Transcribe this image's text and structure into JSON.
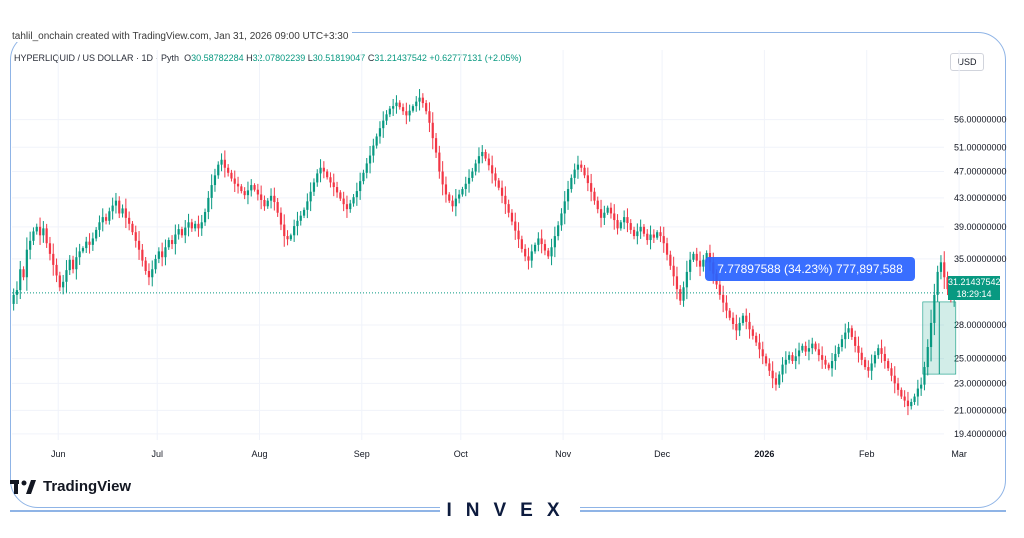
{
  "credit": "tahlil_onchain created with TradingView.com, Jan 31, 2026 09:00 UTC+3:30",
  "symbol_bar": {
    "symbol": "HYPERLIQUID / US DOLLAR · 1D · Pyth",
    "o_label": "O",
    "o_value": "30.58782284",
    "h_label": "H",
    "h_value": "32.07802239",
    "l_label": "L",
    "l_value": "30.51819047",
    "c_label": "C",
    "c_value": "31.21437542",
    "change": "+0.62777131 (+2.05%)"
  },
  "currency_button": "USD",
  "current_price": {
    "value": "31.21437542",
    "countdown": "18:29:14"
  },
  "measure_label": "7.77897588 (34.23%) 777,897,588",
  "brand": {
    "tradingview": "TradingView",
    "watermark": "INVEX"
  },
  "colors": {
    "up": "#089981",
    "down": "#f23645",
    "accent": "#2962ff",
    "frame": "#8fb4e6"
  },
  "chart_data": {
    "type": "candlestick",
    "series_name": "HYPERLIQUID / US DOLLAR",
    "scale": "log",
    "ylim": [
      19.0,
      64.0
    ],
    "y_ticks": [
      "56.00000000",
      "51.00000000",
      "47.00000000",
      "43.00000000",
      "39.00000000",
      "35.00000000",
      "28.00000000",
      "25.00000000",
      "23.00000000",
      "21.00000000",
      "19.40000000"
    ],
    "x_ticks": [
      "Jun",
      "Jul",
      "Aug",
      "Sep",
      "Oct",
      "Nov",
      "Dec",
      "2026",
      "Feb",
      "Mar"
    ],
    "x_tick_dates": [
      "2025-06-01",
      "2025-07-01",
      "2025-08-01",
      "2025-09-01",
      "2025-10-01",
      "2025-11-01",
      "2025-12-01",
      "2026-01-01",
      "2026-02-01",
      "2026-03-01"
    ],
    "start_date": "2025-05-18",
    "end_date": "2026-01-31",
    "closes": [
      31.0,
      31.5,
      33.8,
      32.9,
      36.1,
      37.2,
      38.4,
      39.0,
      37.9,
      38.8,
      36.9,
      35.6,
      34.3,
      33.1,
      31.8,
      32.4,
      33.7,
      34.9,
      33.8,
      35.2,
      35.9,
      36.3,
      37.1,
      36.7,
      37.5,
      38.6,
      39.6,
      40.3,
      39.8,
      41.1,
      41.9,
      42.6,
      40.8,
      41.5,
      40.2,
      39.4,
      38.3,
      37.2,
      36.1,
      34.8,
      33.6,
      32.9,
      33.8,
      35.0,
      35.9,
      35.2,
      36.4,
      37.3,
      36.8,
      38.0,
      38.7,
      37.9,
      38.9,
      39.6,
      38.8,
      39.4,
      38.8,
      39.6,
      41.0,
      43.0,
      44.9,
      46.4,
      48.1,
      48.9,
      47.6,
      46.8,
      45.9,
      45.1,
      44.7,
      44.0,
      43.4,
      44.1,
      44.9,
      44.2,
      43.5,
      42.7,
      41.8,
      42.6,
      43.3,
      42.4,
      40.9,
      39.3,
      37.8,
      37.4,
      37.9,
      39.1,
      39.8,
      40.5,
      41.3,
      42.5,
      43.9,
      45.3,
      46.7,
      47.6,
      47.0,
      46.1,
      45.3,
      44.6,
      43.8,
      42.9,
      42.1,
      41.4,
      42.2,
      43.1,
      44.0,
      45.5,
      46.8,
      48.3,
      49.6,
      51.3,
      52.9,
      54.4,
      55.8,
      57.0,
      58.1,
      58.6,
      59.3,
      58.4,
      57.6,
      56.8,
      57.7,
      58.6,
      59.5,
      60.3,
      59.2,
      57.6,
      55.4,
      52.6,
      50.1,
      47.0,
      45.0,
      43.5,
      42.6,
      41.8,
      42.9,
      43.5,
      44.3,
      45.1,
      46.0,
      47.0,
      48.3,
      49.5,
      50.2,
      49.1,
      48.0,
      46.7,
      45.6,
      44.5,
      43.3,
      42.1,
      40.9,
      39.7,
      38.5,
      37.4,
      36.2,
      35.3,
      34.8,
      35.9,
      36.7,
      37.5,
      36.8,
      36.0,
      35.3,
      36.4,
      37.8,
      39.2,
      40.8,
      42.5,
      44.3,
      46.0,
      47.3,
      48.1,
      47.6,
      46.4,
      45.2,
      43.9,
      42.6,
      41.4,
      40.2,
      40.9,
      41.6,
      40.8,
      39.9,
      38.8,
      39.6,
      40.3,
      39.5,
      38.6,
      37.8,
      38.4,
      39.0,
      38.1,
      37.3,
      38.0,
      37.6,
      38.3,
      37.8,
      36.9,
      35.5,
      34.2,
      33.0,
      31.6,
      30.4,
      31.8,
      33.5,
      34.9,
      35.6,
      34.8,
      34.1,
      34.9,
      35.7,
      34.6,
      33.3,
      32.1,
      31.0,
      30.2,
      29.4,
      28.7,
      28.1,
      27.5,
      28.2,
      28.9,
      28.3,
      27.6,
      27.0,
      26.4,
      25.8,
      25.2,
      24.6,
      24.0,
      23.4,
      22.9,
      23.7,
      24.5,
      24.9,
      25.3,
      24.8,
      25.2,
      25.7,
      26.1,
      25.6,
      25.9,
      26.3,
      25.8,
      25.3,
      24.9,
      24.5,
      24.2,
      24.8,
      25.4,
      26.0,
      26.7,
      27.3,
      27.7,
      26.9,
      26.1,
      25.5,
      24.9,
      24.3,
      24.0,
      24.6,
      25.3,
      25.9,
      25.4,
      24.8,
      24.2,
      23.6,
      23.0,
      22.5,
      22.0,
      21.7,
      21.3,
      21.6,
      22.0,
      22.6,
      22.9,
      24.3,
      26.0,
      28.2,
      31.0,
      33.5,
      34.6,
      32.9,
      31.6,
      30.6,
      31.21
    ]
  }
}
